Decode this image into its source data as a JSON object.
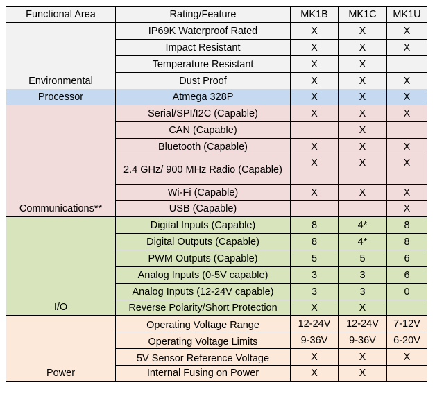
{
  "header": {
    "area": "Functional Area",
    "feature": "Rating/Feature",
    "models": [
      "MK1B",
      "MK1C",
      "MK1U"
    ]
  },
  "sections": [
    {
      "area": "Environmental",
      "rows": [
        {
          "feature": "IP69K Waterproof Rated",
          "values": [
            "X",
            "X",
            "X"
          ]
        },
        {
          "feature": "Impact Resistant",
          "values": [
            "X",
            "X",
            "X"
          ]
        },
        {
          "feature": "Temperature Resistant",
          "values": [
            "X",
            "X",
            ""
          ]
        },
        {
          "feature": "Dust Proof",
          "values": [
            "X",
            "X",
            "X"
          ]
        }
      ]
    },
    {
      "area": "Processor",
      "rows": [
        {
          "feature": "Atmega 328P",
          "values": [
            "X",
            "X",
            "X"
          ]
        }
      ]
    },
    {
      "area": "Communications**",
      "rows": [
        {
          "feature": "Serial/SPI/I2C (Capable)",
          "values": [
            "X",
            "X",
            "X"
          ]
        },
        {
          "feature": "CAN (Capable)",
          "values": [
            "",
            "X",
            ""
          ]
        },
        {
          "feature": "Bluetooth (Capable)",
          "values": [
            "X",
            "X",
            "X"
          ]
        },
        {
          "feature": "2.4 GHz/ 900 MHz Radio (Capable)",
          "values": [
            "X",
            "X",
            "X"
          ]
        },
        {
          "feature": "Wi-Fi (Capable)",
          "values": [
            "X",
            "X",
            "X"
          ]
        },
        {
          "feature": "USB (Capable)",
          "values": [
            "",
            "",
            "X"
          ]
        }
      ]
    },
    {
      "area": "I/O",
      "rows": [
        {
          "feature": "Digital Inputs (Capable)",
          "values": [
            "8",
            "4*",
            "8"
          ]
        },
        {
          "feature": "Digital Outputs (Capable)",
          "values": [
            "8",
            "4*",
            "8"
          ]
        },
        {
          "feature": "PWM Outputs (Capable)",
          "values": [
            "5",
            "5",
            "6"
          ]
        },
        {
          "feature": "Analog Inputs (0-5V capable)",
          "values": [
            "3",
            "3",
            "6"
          ]
        },
        {
          "feature": "Analog Inputs (12-24V capable)",
          "values": [
            "3",
            "3",
            "0"
          ]
        },
        {
          "feature": "Reverse Polarity/Short Protection",
          "values": [
            "X",
            "X",
            ""
          ]
        }
      ]
    },
    {
      "area": "Power",
      "rows": [
        {
          "feature": "Operating Voltage Range",
          "values": [
            "12-24V",
            "12-24V",
            "7-12V"
          ]
        },
        {
          "feature": "Operating Voltage Limits",
          "values": [
            "9-36V",
            "9-36V",
            "6-20V"
          ]
        },
        {
          "feature": "5V Sensor Reference Voltage",
          "values": [
            "X",
            "X",
            "X"
          ]
        },
        {
          "feature": "Internal Fusing on Power",
          "values": [
            "X",
            "X",
            ""
          ]
        }
      ]
    }
  ],
  "colors": {
    "environmental": "#f2f2f2",
    "processor": "#c5d9f0",
    "communications": "#f2dcdb",
    "io": "#d8e4bc",
    "power": "#fde9d9"
  }
}
